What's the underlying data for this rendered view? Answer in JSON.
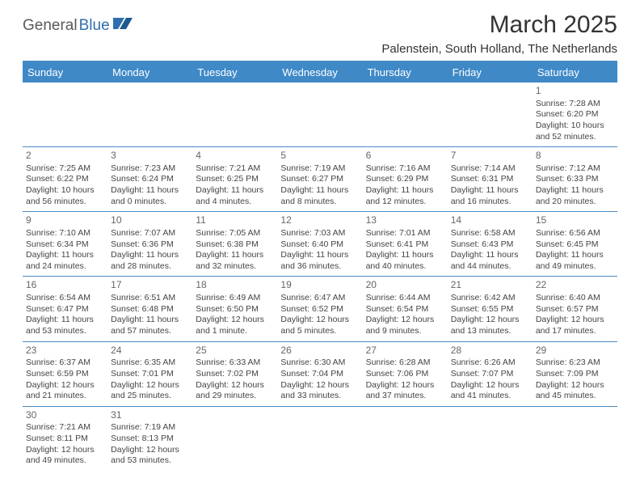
{
  "logo": {
    "part1": "General",
    "part2": "Blue"
  },
  "title": "March 2025",
  "location": "Palenstein, South Holland, The Netherlands",
  "colors": {
    "header_bg": "#3f89c7",
    "divider": "#4a8bc6",
    "logo_gray": "#5a5a5a",
    "logo_blue": "#2f6fb0",
    "text": "#333333"
  },
  "day_headers": [
    "Sunday",
    "Monday",
    "Tuesday",
    "Wednesday",
    "Thursday",
    "Friday",
    "Saturday"
  ],
  "weeks": [
    [
      null,
      null,
      null,
      null,
      null,
      null,
      {
        "n": "1",
        "sunrise": "Sunrise: 7:28 AM",
        "sunset": "Sunset: 6:20 PM",
        "daylight": "Daylight: 10 hours and 52 minutes."
      }
    ],
    [
      {
        "n": "2",
        "sunrise": "Sunrise: 7:25 AM",
        "sunset": "Sunset: 6:22 PM",
        "daylight": "Daylight: 10 hours and 56 minutes."
      },
      {
        "n": "3",
        "sunrise": "Sunrise: 7:23 AM",
        "sunset": "Sunset: 6:24 PM",
        "daylight": "Daylight: 11 hours and 0 minutes."
      },
      {
        "n": "4",
        "sunrise": "Sunrise: 7:21 AM",
        "sunset": "Sunset: 6:25 PM",
        "daylight": "Daylight: 11 hours and 4 minutes."
      },
      {
        "n": "5",
        "sunrise": "Sunrise: 7:19 AM",
        "sunset": "Sunset: 6:27 PM",
        "daylight": "Daylight: 11 hours and 8 minutes."
      },
      {
        "n": "6",
        "sunrise": "Sunrise: 7:16 AM",
        "sunset": "Sunset: 6:29 PM",
        "daylight": "Daylight: 11 hours and 12 minutes."
      },
      {
        "n": "7",
        "sunrise": "Sunrise: 7:14 AM",
        "sunset": "Sunset: 6:31 PM",
        "daylight": "Daylight: 11 hours and 16 minutes."
      },
      {
        "n": "8",
        "sunrise": "Sunrise: 7:12 AM",
        "sunset": "Sunset: 6:33 PM",
        "daylight": "Daylight: 11 hours and 20 minutes."
      }
    ],
    [
      {
        "n": "9",
        "sunrise": "Sunrise: 7:10 AM",
        "sunset": "Sunset: 6:34 PM",
        "daylight": "Daylight: 11 hours and 24 minutes."
      },
      {
        "n": "10",
        "sunrise": "Sunrise: 7:07 AM",
        "sunset": "Sunset: 6:36 PM",
        "daylight": "Daylight: 11 hours and 28 minutes."
      },
      {
        "n": "11",
        "sunrise": "Sunrise: 7:05 AM",
        "sunset": "Sunset: 6:38 PM",
        "daylight": "Daylight: 11 hours and 32 minutes."
      },
      {
        "n": "12",
        "sunrise": "Sunrise: 7:03 AM",
        "sunset": "Sunset: 6:40 PM",
        "daylight": "Daylight: 11 hours and 36 minutes."
      },
      {
        "n": "13",
        "sunrise": "Sunrise: 7:01 AM",
        "sunset": "Sunset: 6:41 PM",
        "daylight": "Daylight: 11 hours and 40 minutes."
      },
      {
        "n": "14",
        "sunrise": "Sunrise: 6:58 AM",
        "sunset": "Sunset: 6:43 PM",
        "daylight": "Daylight: 11 hours and 44 minutes."
      },
      {
        "n": "15",
        "sunrise": "Sunrise: 6:56 AM",
        "sunset": "Sunset: 6:45 PM",
        "daylight": "Daylight: 11 hours and 49 minutes."
      }
    ],
    [
      {
        "n": "16",
        "sunrise": "Sunrise: 6:54 AM",
        "sunset": "Sunset: 6:47 PM",
        "daylight": "Daylight: 11 hours and 53 minutes."
      },
      {
        "n": "17",
        "sunrise": "Sunrise: 6:51 AM",
        "sunset": "Sunset: 6:48 PM",
        "daylight": "Daylight: 11 hours and 57 minutes."
      },
      {
        "n": "18",
        "sunrise": "Sunrise: 6:49 AM",
        "sunset": "Sunset: 6:50 PM",
        "daylight": "Daylight: 12 hours and 1 minute."
      },
      {
        "n": "19",
        "sunrise": "Sunrise: 6:47 AM",
        "sunset": "Sunset: 6:52 PM",
        "daylight": "Daylight: 12 hours and 5 minutes."
      },
      {
        "n": "20",
        "sunrise": "Sunrise: 6:44 AM",
        "sunset": "Sunset: 6:54 PM",
        "daylight": "Daylight: 12 hours and 9 minutes."
      },
      {
        "n": "21",
        "sunrise": "Sunrise: 6:42 AM",
        "sunset": "Sunset: 6:55 PM",
        "daylight": "Daylight: 12 hours and 13 minutes."
      },
      {
        "n": "22",
        "sunrise": "Sunrise: 6:40 AM",
        "sunset": "Sunset: 6:57 PM",
        "daylight": "Daylight: 12 hours and 17 minutes."
      }
    ],
    [
      {
        "n": "23",
        "sunrise": "Sunrise: 6:37 AM",
        "sunset": "Sunset: 6:59 PM",
        "daylight": "Daylight: 12 hours and 21 minutes."
      },
      {
        "n": "24",
        "sunrise": "Sunrise: 6:35 AM",
        "sunset": "Sunset: 7:01 PM",
        "daylight": "Daylight: 12 hours and 25 minutes."
      },
      {
        "n": "25",
        "sunrise": "Sunrise: 6:33 AM",
        "sunset": "Sunset: 7:02 PM",
        "daylight": "Daylight: 12 hours and 29 minutes."
      },
      {
        "n": "26",
        "sunrise": "Sunrise: 6:30 AM",
        "sunset": "Sunset: 7:04 PM",
        "daylight": "Daylight: 12 hours and 33 minutes."
      },
      {
        "n": "27",
        "sunrise": "Sunrise: 6:28 AM",
        "sunset": "Sunset: 7:06 PM",
        "daylight": "Daylight: 12 hours and 37 minutes."
      },
      {
        "n": "28",
        "sunrise": "Sunrise: 6:26 AM",
        "sunset": "Sunset: 7:07 PM",
        "daylight": "Daylight: 12 hours and 41 minutes."
      },
      {
        "n": "29",
        "sunrise": "Sunrise: 6:23 AM",
        "sunset": "Sunset: 7:09 PM",
        "daylight": "Daylight: 12 hours and 45 minutes."
      }
    ],
    [
      {
        "n": "30",
        "sunrise": "Sunrise: 7:21 AM",
        "sunset": "Sunset: 8:11 PM",
        "daylight": "Daylight: 12 hours and 49 minutes."
      },
      {
        "n": "31",
        "sunrise": "Sunrise: 7:19 AM",
        "sunset": "Sunset: 8:13 PM",
        "daylight": "Daylight: 12 hours and 53 minutes."
      },
      null,
      null,
      null,
      null,
      null
    ]
  ]
}
